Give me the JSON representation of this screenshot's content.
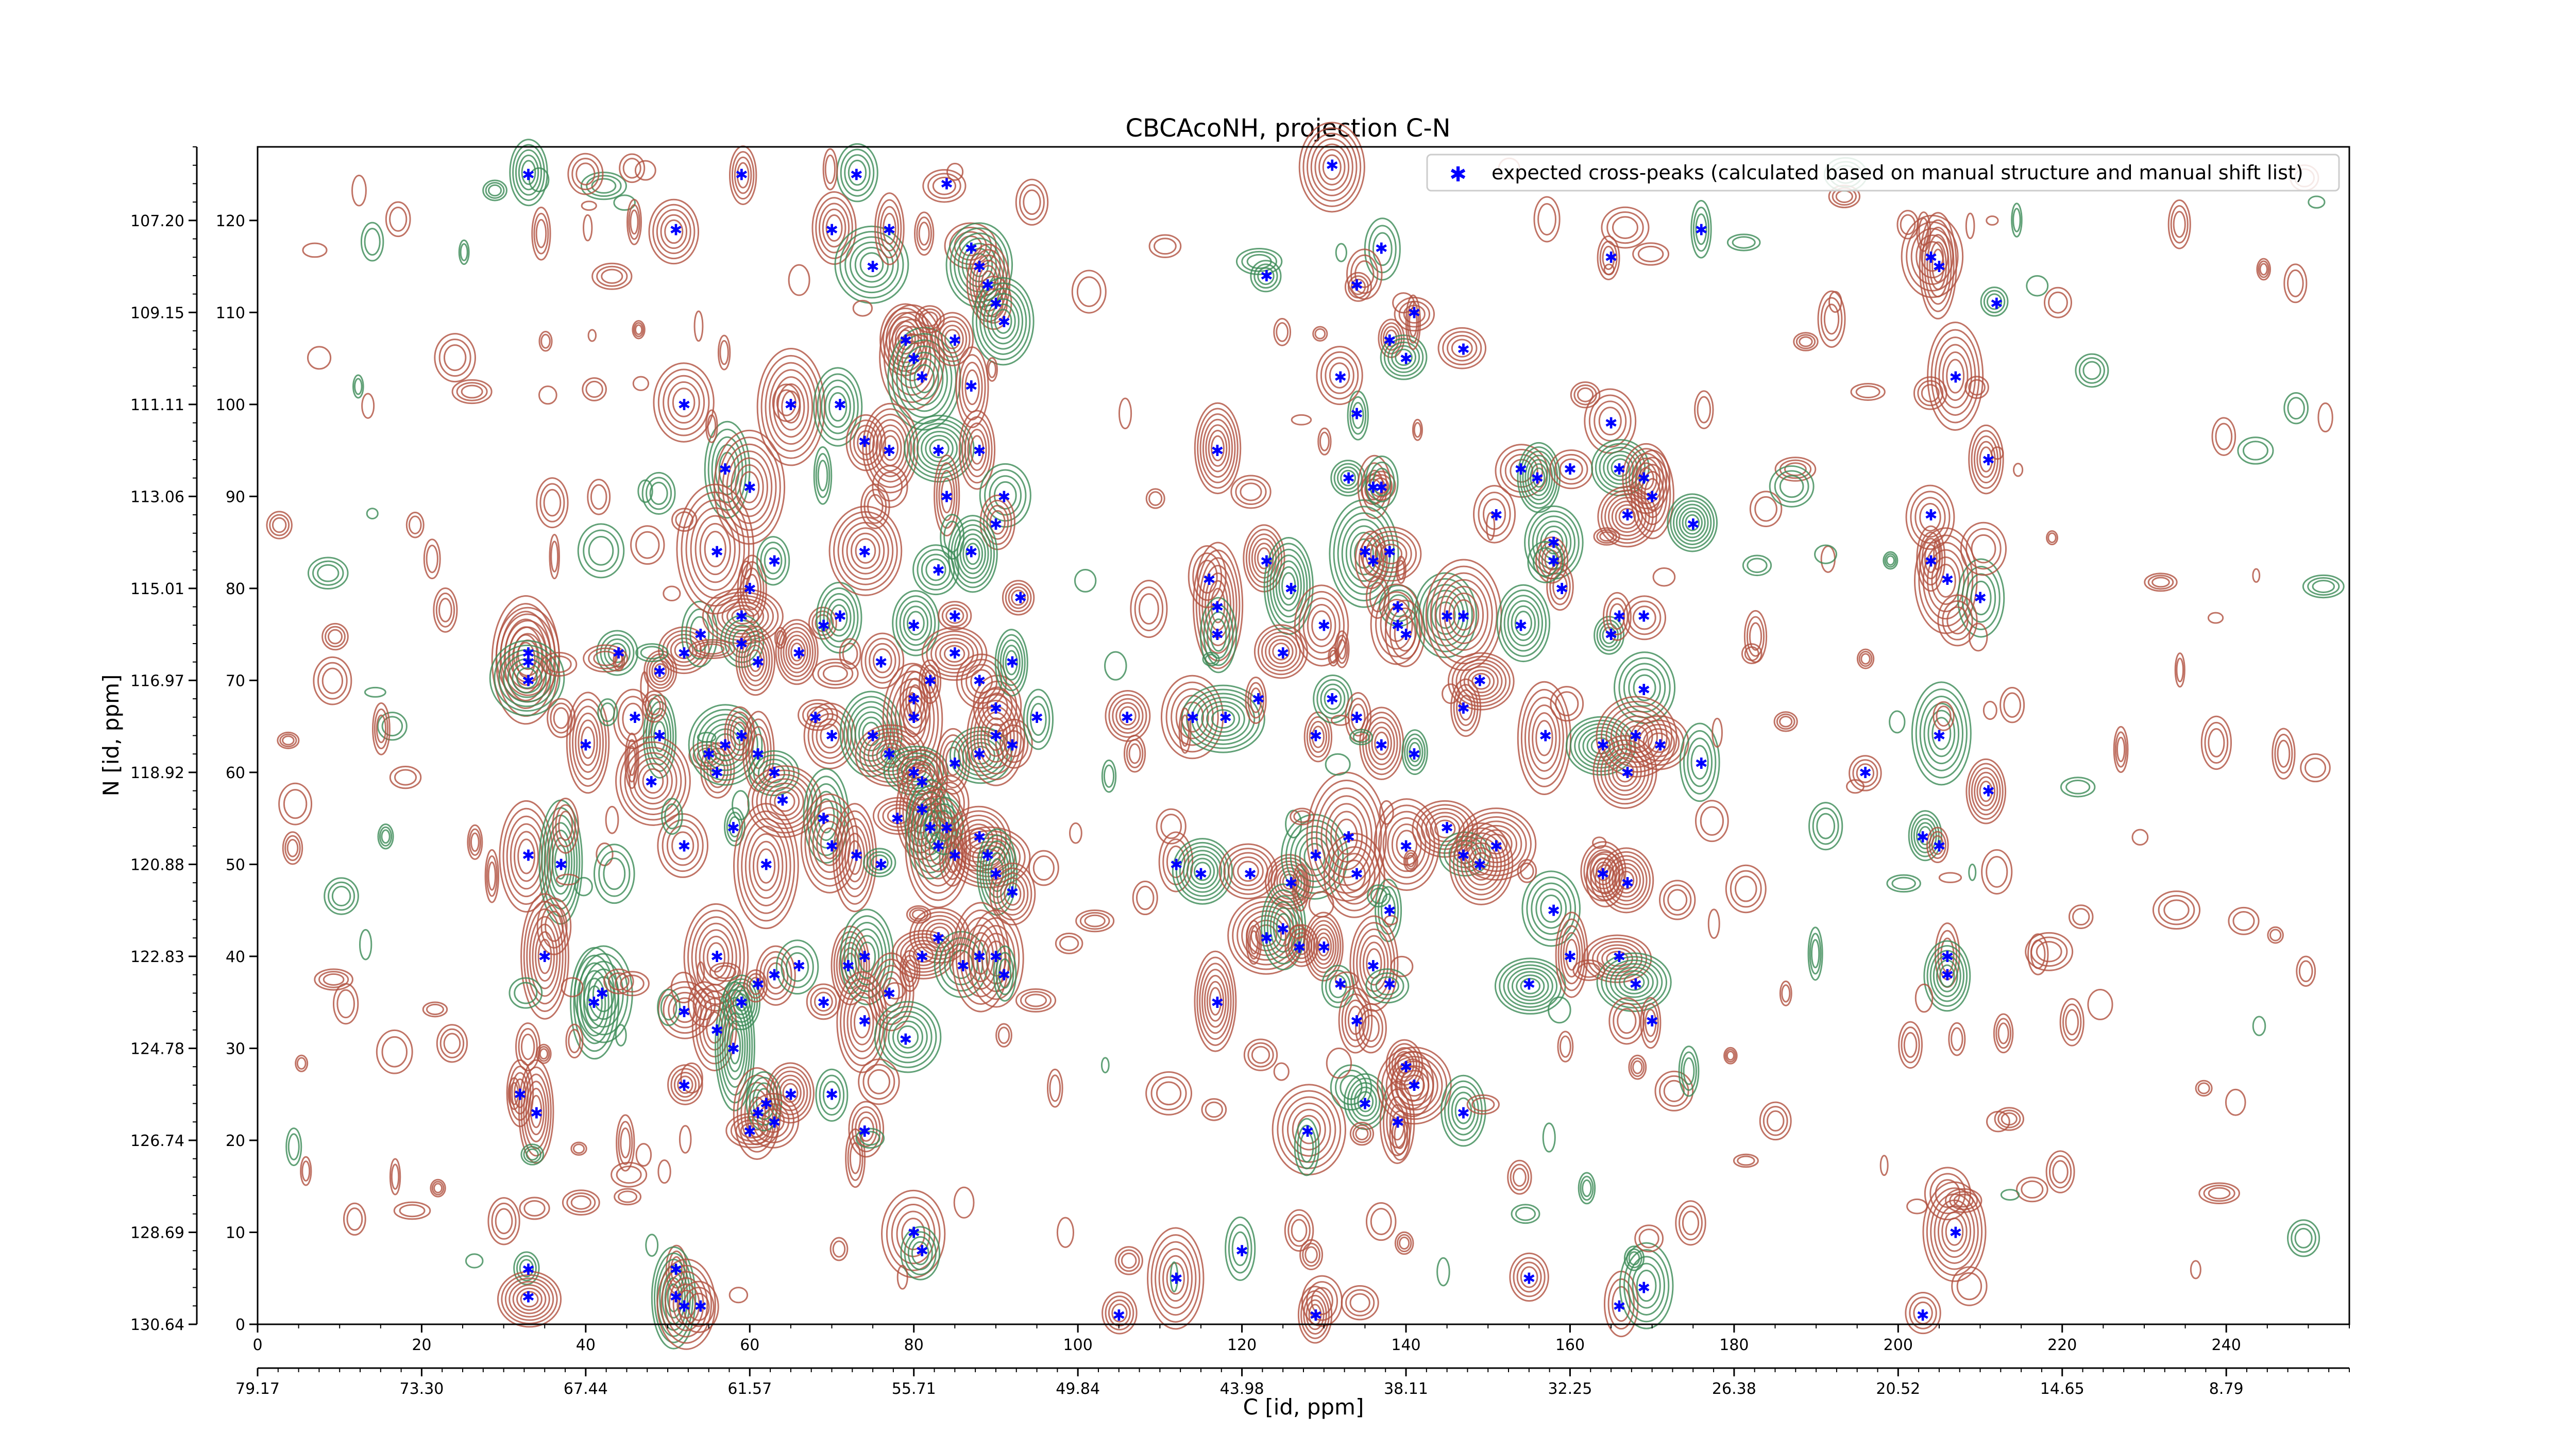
{
  "chart_data": {
    "type": "scatter",
    "title": "CBCAcoNH, projection C-N",
    "xlabel": "C [id, ppm]",
    "ylabel": "N [id, ppm]",
    "xlim": [
      0,
      255
    ],
    "ylim": [
      0,
      128
    ],
    "x_ticks": [
      "0",
      "20",
      "40",
      "60",
      "80",
      "100",
      "120",
      "140",
      "160",
      "180",
      "200",
      "220",
      "240"
    ],
    "x_secondary_ticks": [
      "79.17",
      "73.30",
      "67.44",
      "61.57",
      "55.71",
      "49.84",
      "43.98",
      "38.11",
      "32.25",
      "26.38",
      "20.52",
      "14.65",
      "8.79"
    ],
    "y_ticks": [
      "0",
      "10",
      "20",
      "30",
      "40",
      "50",
      "60",
      "70",
      "80",
      "90",
      "100",
      "110",
      "120"
    ],
    "y_secondary_ticks": [
      "130.64",
      "128.69",
      "126.74",
      "124.78",
      "122.83",
      "120.88",
      "118.92",
      "116.97",
      "115.01",
      "113.06",
      "111.11",
      "109.15",
      "107.20"
    ],
    "grid": false,
    "legend_position": "top-right",
    "series": [
      {
        "name": "expected cross-peaks (calculated based on manual structure and manual shift list)",
        "color": "#0000ff",
        "marker": "star",
        "points": [
          [
            33,
            125
          ],
          [
            51,
            119
          ],
          [
            59,
            125
          ],
          [
            73,
            125
          ],
          [
            84,
            124
          ],
          [
            70,
            119
          ],
          [
            75,
            115
          ],
          [
            77,
            119
          ],
          [
            87,
            117
          ],
          [
            88,
            115
          ],
          [
            89,
            113
          ],
          [
            90,
            111
          ],
          [
            91,
            109
          ],
          [
            79,
            107
          ],
          [
            80,
            105
          ],
          [
            81,
            103
          ],
          [
            85,
            107
          ],
          [
            87,
            102
          ],
          [
            123,
            114
          ],
          [
            131,
            126
          ],
          [
            134,
            113
          ],
          [
            137,
            117
          ],
          [
            138,
            107
          ],
          [
            141,
            110
          ],
          [
            140,
            105
          ],
          [
            147,
            106
          ],
          [
            165,
            116
          ],
          [
            176,
            119
          ],
          [
            204,
            116
          ],
          [
            205,
            115
          ],
          [
            212,
            111
          ],
          [
            207,
            103
          ],
          [
            52,
            100
          ],
          [
            57,
            93
          ],
          [
            60,
            91
          ],
          [
            65,
            100
          ],
          [
            71,
            100
          ],
          [
            74,
            96
          ],
          [
            77,
            95
          ],
          [
            83,
            95
          ],
          [
            84,
            90
          ],
          [
            88,
            95
          ],
          [
            91,
            90
          ],
          [
            90,
            87
          ],
          [
            117,
            95
          ],
          [
            133,
            92
          ],
          [
            136,
            91
          ],
          [
            137,
            91
          ],
          [
            134,
            99
          ],
          [
            132,
            103
          ],
          [
            154,
            93
          ],
          [
            156,
            92
          ],
          [
            160,
            93
          ],
          [
            165,
            98
          ],
          [
            166,
            93
          ],
          [
            169,
            92
          ],
          [
            170,
            90
          ],
          [
            158,
            85
          ],
          [
            151,
            88
          ],
          [
            167,
            88
          ],
          [
            175,
            87
          ],
          [
            204,
            88
          ],
          [
            211,
            94
          ],
          [
            44,
            73
          ],
          [
            49,
            71
          ],
          [
            52,
            73
          ],
          [
            54,
            75
          ],
          [
            56,
            84
          ],
          [
            59,
            77
          ],
          [
            59,
            74
          ],
          [
            60,
            80
          ],
          [
            61,
            72
          ],
          [
            63,
            83
          ],
          [
            66,
            73
          ],
          [
            69,
            76
          ],
          [
            71,
            77
          ],
          [
            74,
            84
          ],
          [
            76,
            72
          ],
          [
            80,
            76
          ],
          [
            80,
            68
          ],
          [
            82,
            70
          ],
          [
            83,
            82
          ],
          [
            85,
            77
          ],
          [
            85,
            73
          ],
          [
            87,
            84
          ],
          [
            88,
            70
          ],
          [
            90,
            67
          ],
          [
            92,
            72
          ],
          [
            93,
            79
          ],
          [
            117,
            78
          ],
          [
            117,
            75
          ],
          [
            116,
            81
          ],
          [
            123,
            83
          ],
          [
            126,
            80
          ],
          [
            125,
            73
          ],
          [
            130,
            76
          ],
          [
            135,
            84
          ],
          [
            136,
            83
          ],
          [
            138,
            84
          ],
          [
            139,
            78
          ],
          [
            139,
            76
          ],
          [
            140,
            75
          ],
          [
            145,
            77
          ],
          [
            147,
            77
          ],
          [
            149,
            70
          ],
          [
            154,
            76
          ],
          [
            158,
            83
          ],
          [
            159,
            80
          ],
          [
            165,
            75
          ],
          [
            166,
            77
          ],
          [
            169,
            77
          ],
          [
            169,
            69
          ],
          [
            204,
            83
          ],
          [
            206,
            81
          ],
          [
            210,
            79
          ],
          [
            33,
            73
          ],
          [
            33,
            72
          ],
          [
            33,
            70
          ],
          [
            40,
            63
          ],
          [
            46,
            66
          ],
          [
            49,
            64
          ],
          [
            55,
            62
          ],
          [
            56,
            60
          ],
          [
            57,
            63
          ],
          [
            59,
            64
          ],
          [
            61,
            62
          ],
          [
            63,
            60
          ],
          [
            68,
            66
          ],
          [
            70,
            64
          ],
          [
            75,
            64
          ],
          [
            77,
            62
          ],
          [
            80,
            66
          ],
          [
            80,
            60
          ],
          [
            81,
            59
          ],
          [
            85,
            61
          ],
          [
            88,
            62
          ],
          [
            90,
            64
          ],
          [
            92,
            63
          ],
          [
            95,
            66
          ],
          [
            106,
            66
          ],
          [
            114,
            66
          ],
          [
            118,
            66
          ],
          [
            122,
            68
          ],
          [
            129,
            64
          ],
          [
            131,
            68
          ],
          [
            134,
            66
          ],
          [
            137,
            63
          ],
          [
            141,
            62
          ],
          [
            147,
            67
          ],
          [
            157,
            64
          ],
          [
            164,
            63
          ],
          [
            168,
            64
          ],
          [
            171,
            63
          ],
          [
            176,
            61
          ],
          [
            167,
            60
          ],
          [
            196,
            60
          ],
          [
            205,
            64
          ],
          [
            211,
            58
          ],
          [
            33,
            51
          ],
          [
            37,
            50
          ],
          [
            48,
            59
          ],
          [
            52,
            52
          ],
          [
            58,
            54
          ],
          [
            62,
            50
          ],
          [
            64,
            57
          ],
          [
            69,
            55
          ],
          [
            70,
            52
          ],
          [
            73,
            51
          ],
          [
            76,
            50
          ],
          [
            78,
            55
          ],
          [
            81,
            56
          ],
          [
            82,
            54
          ],
          [
            83,
            52
          ],
          [
            85,
            51
          ],
          [
            84,
            54
          ],
          [
            88,
            53
          ],
          [
            89,
            51
          ],
          [
            90,
            49
          ],
          [
            92,
            47
          ],
          [
            112,
            50
          ],
          [
            115,
            49
          ],
          [
            121,
            49
          ],
          [
            126,
            48
          ],
          [
            129,
            51
          ],
          [
            133,
            53
          ],
          [
            134,
            49
          ],
          [
            138,
            45
          ],
          [
            140,
            52
          ],
          [
            145,
            54
          ],
          [
            147,
            51
          ],
          [
            149,
            50
          ],
          [
            151,
            52
          ],
          [
            158,
            45
          ],
          [
            164,
            49
          ],
          [
            167,
            48
          ],
          [
            203,
            53
          ],
          [
            205,
            52
          ],
          [
            35,
            40
          ],
          [
            42,
            36
          ],
          [
            52,
            34
          ],
          [
            56,
            40
          ],
          [
            59,
            35
          ],
          [
            61,
            37
          ],
          [
            63,
            38
          ],
          [
            66,
            39
          ],
          [
            69,
            35
          ],
          [
            72,
            39
          ],
          [
            74,
            40
          ],
          [
            74,
            33
          ],
          [
            77,
            36
          ],
          [
            79,
            31
          ],
          [
            81,
            40
          ],
          [
            83,
            42
          ],
          [
            86,
            39
          ],
          [
            88,
            40
          ],
          [
            90,
            40
          ],
          [
            91,
            38
          ],
          [
            117,
            35
          ],
          [
            123,
            42
          ],
          [
            125,
            43
          ],
          [
            127,
            41
          ],
          [
            130,
            41
          ],
          [
            132,
            37
          ],
          [
            134,
            33
          ],
          [
            136,
            39
          ],
          [
            138,
            37
          ],
          [
            140,
            28
          ],
          [
            141,
            26
          ],
          [
            155,
            37
          ],
          [
            160,
            40
          ],
          [
            166,
            40
          ],
          [
            168,
            37
          ],
          [
            170,
            33
          ],
          [
            206,
            40
          ],
          [
            206,
            38
          ],
          [
            32,
            25
          ],
          [
            34,
            23
          ],
          [
            41,
            35
          ],
          [
            52,
            26
          ],
          [
            56,
            32
          ],
          [
            58,
            30
          ],
          [
            60,
            21
          ],
          [
            61,
            23
          ],
          [
            62,
            24
          ],
          [
            63,
            22
          ],
          [
            65,
            25
          ],
          [
            70,
            25
          ],
          [
            74,
            21
          ],
          [
            80,
            10
          ],
          [
            81,
            8
          ],
          [
            105,
            1
          ],
          [
            112,
            5
          ],
          [
            120,
            8
          ],
          [
            128,
            21
          ],
          [
            129,
            1
          ],
          [
            135,
            24
          ],
          [
            139,
            22
          ],
          [
            141,
            26
          ],
          [
            147,
            23
          ],
          [
            155,
            5
          ],
          [
            166,
            2
          ],
          [
            169,
            4
          ],
          [
            207,
            10
          ],
          [
            203,
            1
          ],
          [
            33,
            6
          ],
          [
            33,
            3
          ],
          [
            51,
            6
          ],
          [
            51,
            3
          ],
          [
            52,
            2
          ],
          [
            54,
            2
          ]
        ]
      }
    ]
  }
}
